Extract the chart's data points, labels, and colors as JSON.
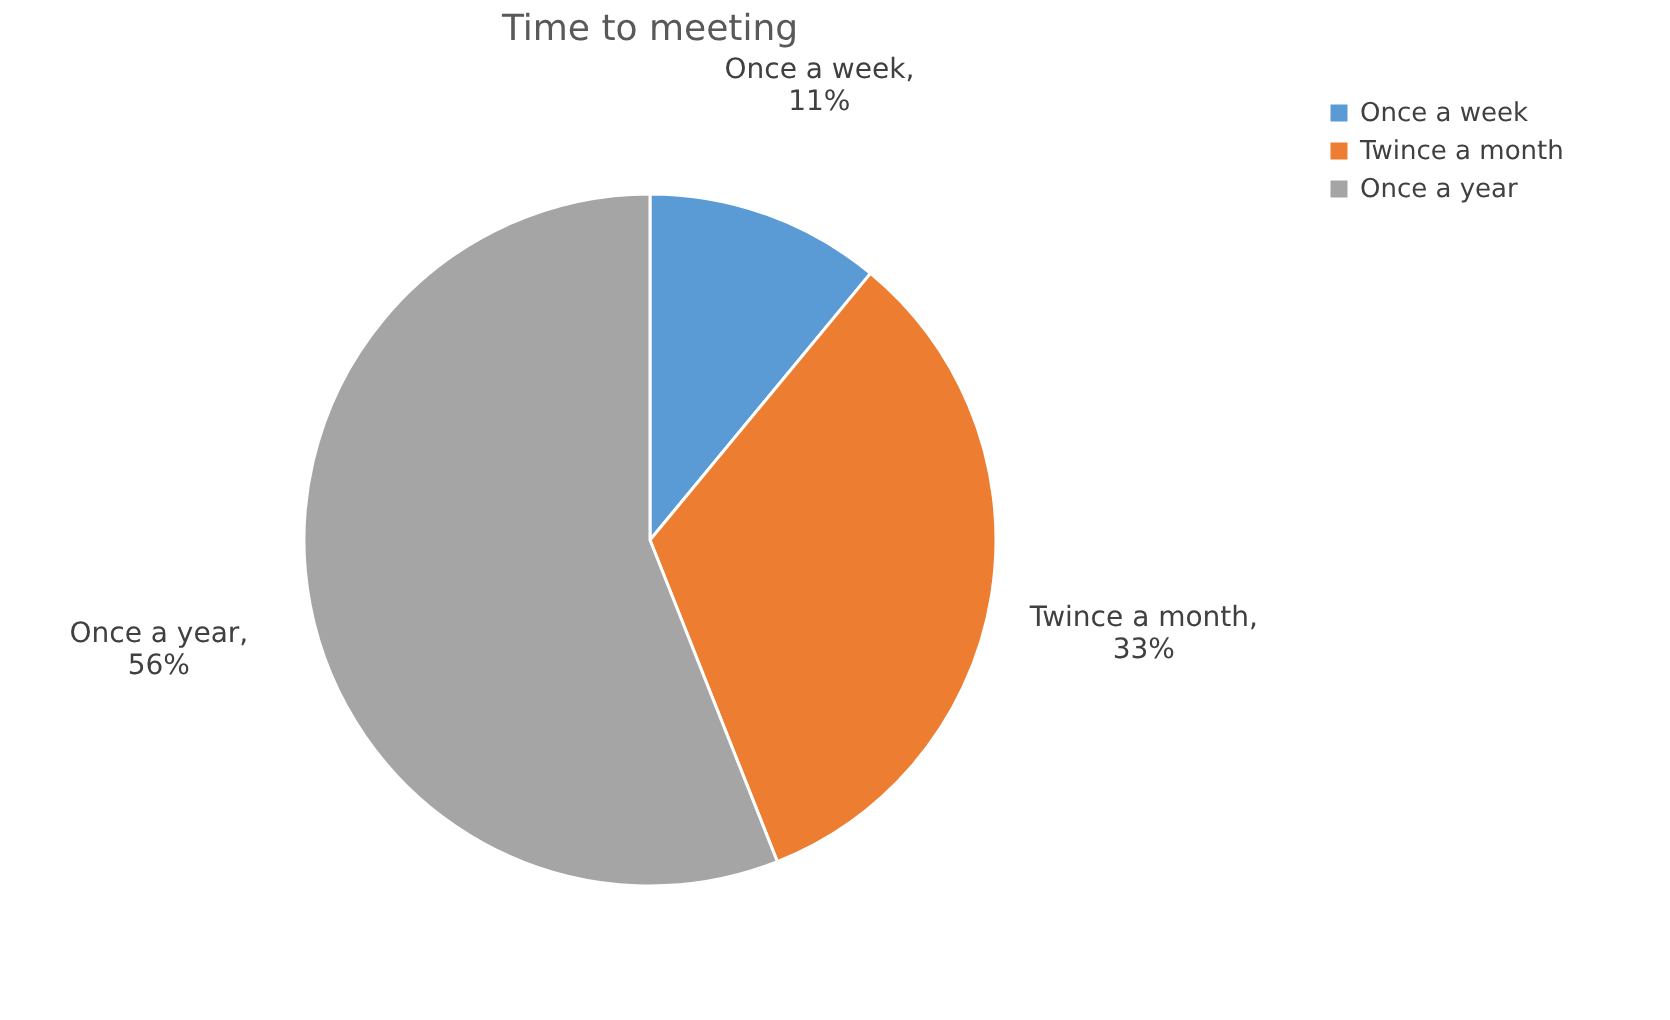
{
  "chart_data": {
    "type": "pie",
    "title": "Time to meeting",
    "categories": [
      "Once a week",
      "Twince a month",
      "Once a year"
    ],
    "values": [
      11,
      33,
      56
    ],
    "colors": [
      "#5b9bd5",
      "#ed7d31",
      "#a5a5a5"
    ],
    "value_labels": [
      "Once a week, 11%",
      "Twince a month, 33%",
      "Once a year, 56%"
    ],
    "legend": "right"
  }
}
